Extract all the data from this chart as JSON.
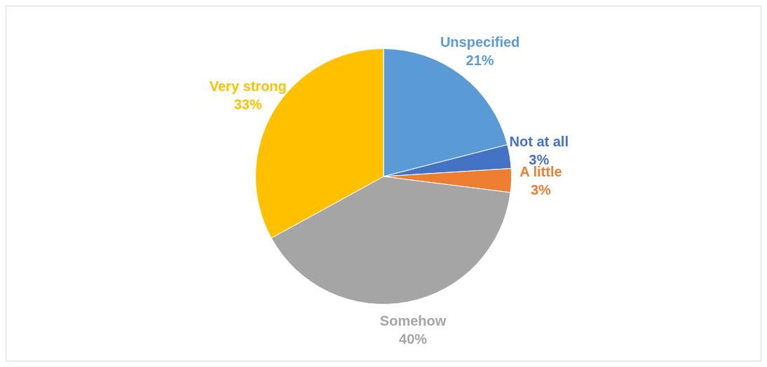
{
  "chart_data": {
    "type": "pie",
    "categories": [
      "Unspecified",
      "Not at all",
      "A little",
      "Somehow",
      "Very strong"
    ],
    "values": [
      21,
      3,
      3,
      40,
      33
    ],
    "value_labels": [
      "21%",
      "3%",
      "3%",
      "40%",
      "33%"
    ],
    "colors": [
      "#5b9bd5",
      "#4472c4",
      "#ed7d31",
      "#a5a5a5",
      "#ffc000"
    ],
    "legend": false
  }
}
